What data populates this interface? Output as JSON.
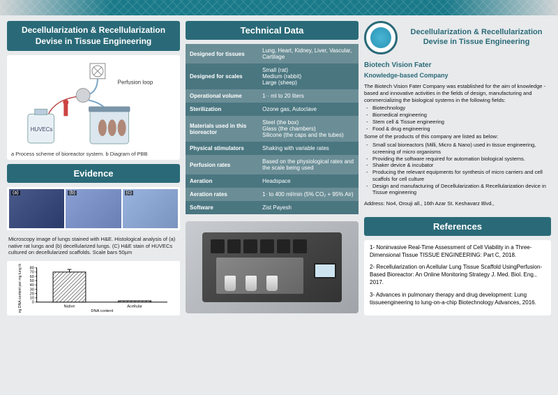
{
  "title": "Decellularization  & Recellularization Devise in Tissue Engineering",
  "diagram": {
    "perfusion_label": "Perfusion loop",
    "huvecs_label": "HUVECs",
    "caption": "a Process scheme of bioreactor system. b Diagram of PBB"
  },
  "evidence": {
    "header": "Evidence",
    "img_labels": [
      "(a)",
      "(b)",
      "(c)"
    ],
    "text": "Microscopy image of lungs stained with H&E. Histological analysis of (a) native rat lungs and (b) decellularized lungs. (C) H&E stain of HUVECs cultured on decellularized scaffolds. Scale bars 50µm",
    "chart": {
      "type": "bar",
      "ylabel": "ng DNA content per mg lung tissue",
      "xlabel": "DNA content",
      "categories": [
        "Native",
        "Acellular"
      ],
      "values": [
        70,
        3
      ],
      "ylim": [
        0,
        80
      ],
      "ytick_step": 10,
      "bar_color": "#ffffff",
      "bar_hatch": "diagonal",
      "bar_border": "#000000",
      "bar_width": 0.5,
      "background_color": "#ffffff",
      "axis_color": "#000000",
      "label_fontsize": 6
    }
  },
  "technical": {
    "header": "Technical Data",
    "rows": [
      {
        "label": "Designed for tissues",
        "value": "Lung, Heart, Kidney, Liver, Vascular, Cartilage"
      },
      {
        "label": "Designed for scales",
        "value": "Small (rat)\nMedium (rabbit)\nLarge (sheep)"
      },
      {
        "label": "Operational volume",
        "value": "1·· ml to 20 liters"
      },
      {
        "label": "Sterilization",
        "value": "Ozone gas, Autoclave"
      },
      {
        "label": "Materials used in this bioreactor",
        "value": "Steel (the box)\nGlass (the chambers)\nSilicone (the caps and the tubes)"
      },
      {
        "label": "Physical stimulators",
        "value": "Shaking with variable rates"
      },
      {
        "label": "Perfusion rates",
        "value": "Based on the physiological rates and the scale being used"
      },
      {
        "label": "Aeration",
        "value": "Headspace"
      },
      {
        "label": "Aeration rates",
        "value": "1· to 400 ml/min (5% CO₂ + 95% Air)"
      },
      {
        "label": "Software",
        "value": "Zist Payesh"
      }
    ]
  },
  "company": {
    "title": "Decellularization  & Recellularization Devise in Tissue Engineering",
    "name_line1": "Biotech Vision Fater",
    "name_line2": "Knowledge-based Company",
    "intro": "The Biotech Vision Fater Company was established for the aim of knowledge - based and innovative activities in the fields of design, manufacturing and commercializing the biological systems in the following fields:",
    "fields": [
      "Biotechnology",
      "Biomedical engineering",
      "Stem cell & Tissue engineering",
      "Food & drug engineering"
    ],
    "products_intro": "Some of the products of this company are listed as below:",
    "products": [
      "Small scal bioreactors (Milli, Micro & Nano) used in tissue engineering, screening of micro organisms",
      "Providing the software required for automation biological systems.",
      "Shaker device & incubator",
      "Producing the relevant equipments for synthesis of micro carriers and cell scaffols for cell culture",
      "Design and manufacturing of  Decellularization & Recellularization device in Tissue engineering"
    ],
    "address": "Address: No4, Orouji all., 16th Azar St. Keshavarz Blvd.,"
  },
  "references": {
    "header": "References",
    "items": [
      "1- Noninvasive Real-Time Assessment of Cell Viability in a Three-Dimensional Tissue TISSUE ENGINEERING: Part C, 2018.",
      "2- Recellularization on Acellular Lung Tissue Scaffold UsingPerfusion-Based Bioreactor: An Online Monitoring Strategy J. Med. Biol. Eng., 2017.",
      "3- Advances in pulmonary therapy and drug development: Lung tissueengineering to lung-on-a-chip Biotechnology Advances, 2016."
    ]
  },
  "colors": {
    "header_bg": "#2a6a78",
    "table_odd": "#6b8e96",
    "table_even": "#4a7680",
    "accent": "#2a6a78"
  }
}
